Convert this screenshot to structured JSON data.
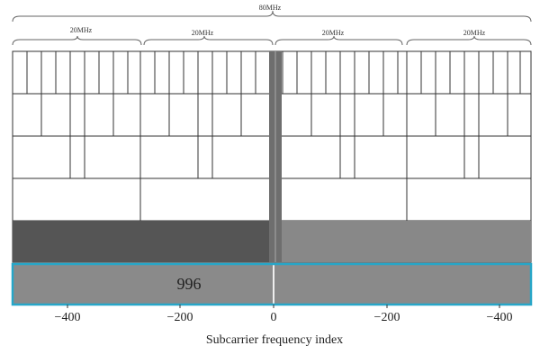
{
  "bandwidth_labels": {
    "total": "80MHz",
    "sub": [
      "20MHz",
      "20MHz",
      "20MHz",
      "20MHz"
    ]
  },
  "ru_label": "996",
  "x_ticks": [
    "−400",
    "−200",
    "0",
    "−200",
    "−400"
  ],
  "x_axis_label": "Subcarrier frequency index",
  "colors": {
    "dark_block": "#555555",
    "light_block": "#888888",
    "highlight_border": "#27a6c8",
    "bottom_block": "#8a8a8a"
  }
}
